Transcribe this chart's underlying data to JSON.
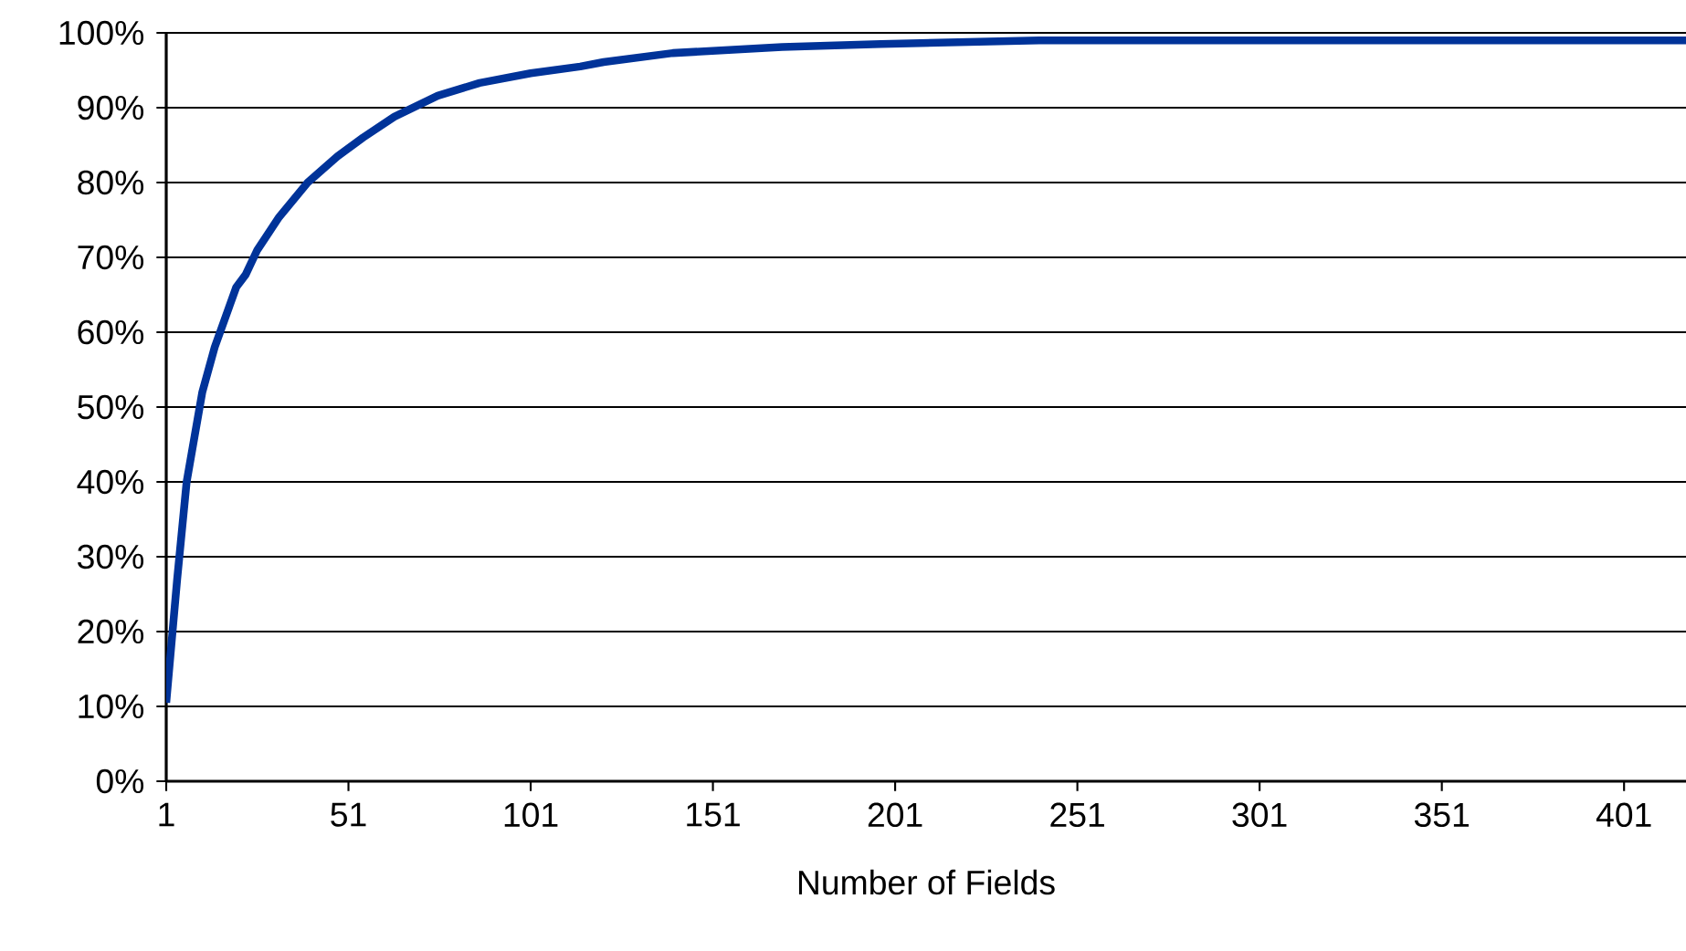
{
  "chart_data": {
    "type": "line",
    "xlabel": "Number of  Fields",
    "x": [
      1,
      4,
      6.6,
      10.9,
      14.3,
      20.2,
      22.8,
      26,
      32,
      39.8,
      48,
      55,
      63.6,
      75.5,
      87,
      101,
      114.6,
      121,
      140,
      170,
      197,
      240.5,
      418
    ],
    "values": [
      10.5,
      27,
      40,
      52,
      58,
      66,
      67.7,
      71,
      75.4,
      80,
      83.5,
      86,
      88.8,
      91.6,
      93.3,
      94.6,
      95.5,
      96.1,
      97.3,
      98.1,
      98.5,
      99,
      99
    ],
    "color": "#003399",
    "xlim": [
      1,
      418
    ],
    "ylim": [
      0,
      100
    ],
    "xticks": [
      1,
      51,
      101,
      151,
      201,
      251,
      301,
      351,
      401
    ],
    "yticks": [
      {
        "value": 0,
        "label": "0%"
      },
      {
        "value": 10,
        "label": "10%"
      },
      {
        "value": 20,
        "label": "20%"
      },
      {
        "value": 30,
        "label": "30%"
      },
      {
        "value": 40,
        "label": "40%"
      },
      {
        "value": 50,
        "label": "50%"
      },
      {
        "value": 60,
        "label": "60%"
      },
      {
        "value": 70,
        "label": "70%"
      },
      {
        "value": 80,
        "label": "80%"
      },
      {
        "value": 90,
        "label": "90%"
      },
      {
        "value": 100,
        "label": "100%"
      }
    ],
    "grid": "y"
  }
}
